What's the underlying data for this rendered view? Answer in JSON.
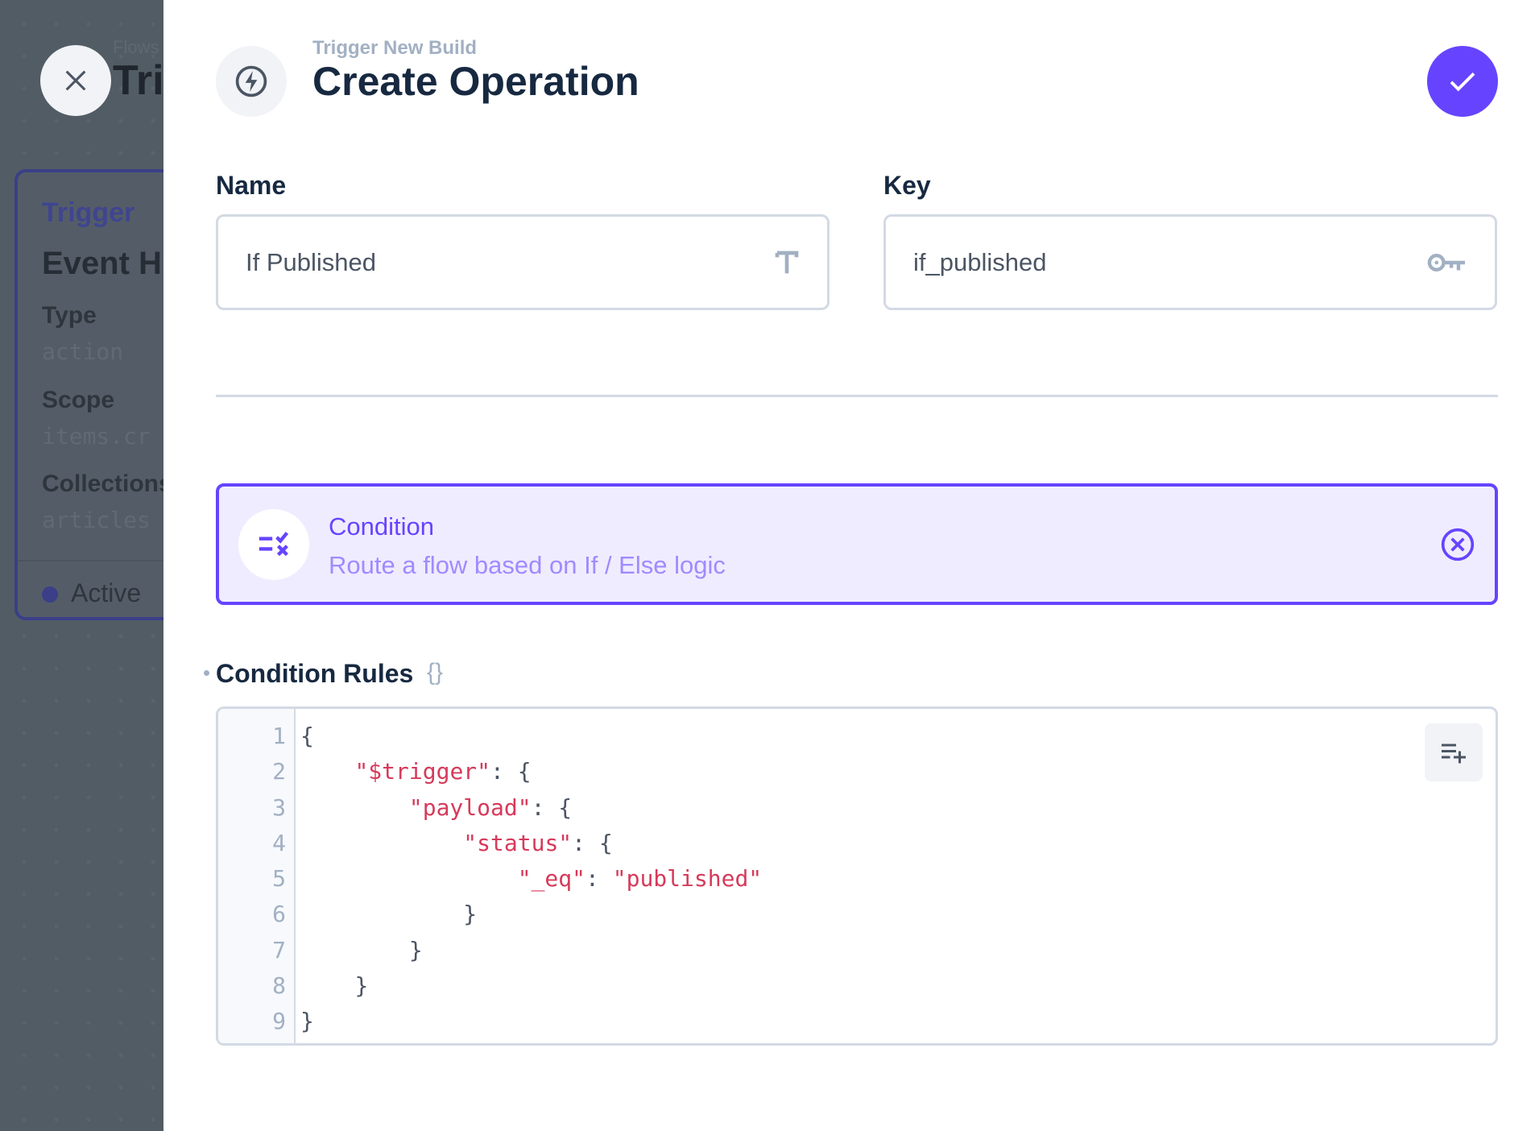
{
  "background": {
    "breadcrumb": "Flows",
    "title": "Tri",
    "trigger_label": "Trigger",
    "card_title": "Event H",
    "fields": [
      {
        "label": "Type",
        "value": "action"
      },
      {
        "label": "Scope",
        "value": "items.cr"
      },
      {
        "label": "Collections",
        "value": "articles"
      }
    ],
    "status": "Active"
  },
  "header": {
    "subtitle": "Trigger New Build",
    "title": "Create Operation",
    "icon": "bolt-icon",
    "save_icon": "check-icon",
    "close_icon": "close-icon"
  },
  "form": {
    "name": {
      "label": "Name",
      "value": "If Published",
      "icon": "text-icon"
    },
    "key": {
      "label": "Key",
      "value": "if_published",
      "icon": "key-icon"
    }
  },
  "operation": {
    "title": "Condition",
    "description": "Route a flow based on If / Else logic",
    "icon": "rule-icon",
    "remove_icon": "cancel-circle-icon"
  },
  "rules": {
    "label": "Condition Rules",
    "braces": "{}",
    "format_icon": "playlist-add-icon",
    "lines": [
      {
        "n": "1",
        "indent": "",
        "key": "",
        "rest": "{"
      },
      {
        "n": "2",
        "indent": "    ",
        "key": "\"$trigger\"",
        "rest": ": {"
      },
      {
        "n": "3",
        "indent": "        ",
        "key": "\"payload\"",
        "rest": ": {"
      },
      {
        "n": "4",
        "indent": "            ",
        "key": "\"status\"",
        "rest": ": {"
      },
      {
        "n": "5",
        "indent": "                ",
        "key": "\"_eq\"",
        "rest": ": ",
        "val": "\"published\""
      },
      {
        "n": "6",
        "indent": "            ",
        "key": "",
        "rest": "}"
      },
      {
        "n": "7",
        "indent": "        ",
        "key": "",
        "rest": "}"
      },
      {
        "n": "8",
        "indent": "    ",
        "key": "",
        "rest": "}"
      },
      {
        "n": "9",
        "indent": "",
        "key": "",
        "rest": "}"
      }
    ]
  },
  "colors": {
    "accent": "#6644ff",
    "string": "#d63a5a",
    "overlay": "#525c65"
  }
}
